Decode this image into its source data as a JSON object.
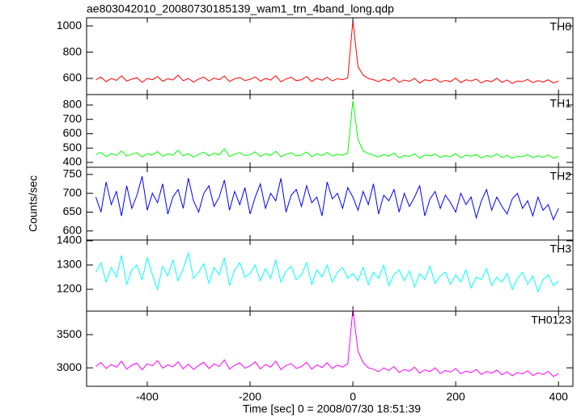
{
  "chart_data": [
    {
      "type": "line",
      "title": "ae803042010_20080730185139_wam1_trn_4band_long.qdp",
      "label": "TH0",
      "color": "#ff0000",
      "xlim": [
        -518,
        428
      ],
      "ylim": [
        477,
        1062
      ],
      "yticks": [
        600,
        800,
        1000
      ],
      "x": [
        -500,
        -490,
        -480,
        -470,
        -460,
        -450,
        -440,
        -430,
        -420,
        -410,
        -400,
        -390,
        -380,
        -370,
        -360,
        -350,
        -340,
        -330,
        -320,
        -310,
        -300,
        -290,
        -280,
        -270,
        -260,
        -250,
        -240,
        -230,
        -220,
        -210,
        -200,
        -190,
        -180,
        -170,
        -160,
        -150,
        -140,
        -130,
        -120,
        -110,
        -100,
        -90,
        -80,
        -70,
        -60,
        -50,
        -40,
        -30,
        -20,
        -10,
        0,
        10,
        20,
        30,
        40,
        50,
        60,
        70,
        80,
        90,
        100,
        110,
        120,
        130,
        140,
        150,
        160,
        170,
        180,
        190,
        200,
        210,
        220,
        230,
        240,
        250,
        260,
        270,
        280,
        290,
        300,
        310,
        320,
        330,
        340,
        350,
        360,
        370,
        380,
        390,
        400
      ],
      "values": [
        590,
        610,
        575,
        600,
        585,
        620,
        580,
        595,
        605,
        570,
        600,
        590,
        615,
        578,
        598,
        588,
        625,
        582,
        600,
        572,
        595,
        610,
        580,
        603,
        590,
        618,
        576,
        597,
        606,
        584,
        592,
        612,
        579,
        600,
        587,
        620,
        574,
        596,
        608,
        583,
        590,
        614,
        577,
        601,
        586,
        609,
        581,
        598,
        590,
        603,
        1040,
        690,
        625,
        600,
        590,
        575,
        595,
        580,
        605,
        570,
        588,
        578,
        600,
        565,
        590,
        582,
        598,
        572,
        585,
        576,
        602,
        568,
        590,
        580,
        595,
        565,
        585,
        575,
        600,
        570,
        588,
        562,
        580,
        576,
        592,
        568,
        583,
        572,
        590,
        565,
        580
      ]
    },
    {
      "type": "line",
      "label": "TH1",
      "color": "#00ff00",
      "xlim": [
        -518,
        428
      ],
      "ylim": [
        366,
        873
      ],
      "yticks": [
        400,
        500,
        600,
        700,
        800
      ],
      "x": [
        -500,
        -490,
        -480,
        -470,
        -460,
        -450,
        -440,
        -430,
        -420,
        -410,
        -400,
        -390,
        -380,
        -370,
        -360,
        -350,
        -340,
        -330,
        -320,
        -310,
        -300,
        -290,
        -280,
        -270,
        -260,
        -250,
        -240,
        -230,
        -220,
        -210,
        -200,
        -190,
        -180,
        -170,
        -160,
        -150,
        -140,
        -130,
        -120,
        -110,
        -100,
        -90,
        -80,
        -70,
        -60,
        -50,
        -40,
        -30,
        -20,
        -10,
        0,
        10,
        20,
        30,
        40,
        50,
        60,
        70,
        80,
        90,
        100,
        110,
        120,
        130,
        140,
        150,
        160,
        170,
        180,
        190,
        200,
        210,
        220,
        230,
        240,
        250,
        260,
        270,
        280,
        290,
        300,
        310,
        320,
        330,
        340,
        350,
        360,
        370,
        380,
        390,
        400
      ],
      "values": [
        455,
        470,
        440,
        462,
        448,
        480,
        445,
        458,
        468,
        438,
        460,
        452,
        475,
        443,
        459,
        450,
        485,
        446,
        462,
        437,
        456,
        472,
        444,
        465,
        452,
        495,
        441,
        458,
        468,
        447,
        453,
        474,
        442,
        461,
        449,
        478,
        440,
        457,
        467,
        446,
        451,
        473,
        439,
        460,
        448,
        469,
        444,
        457,
        450,
        465,
        830,
        560,
        480,
        462,
        450,
        438,
        455,
        444,
        466,
        432,
        448,
        441,
        460,
        430,
        452,
        445,
        458,
        435,
        447,
        440,
        462,
        432,
        451,
        443,
        455,
        430,
        448,
        438,
        460,
        434,
        449,
        428,
        444,
        440,
        455,
        432,
        446,
        436,
        452,
        430,
        442
      ]
    },
    {
      "type": "line",
      "label": "TH2",
      "ylabel": "Counts/sec",
      "color": "#0000ff",
      "xlim": [
        -518,
        428
      ],
      "ylim": [
        576,
        769
      ],
      "yticks": [
        600,
        650,
        700,
        750
      ],
      "x": [
        -500,
        -490,
        -480,
        -470,
        -460,
        -450,
        -440,
        -430,
        -420,
        -410,
        -400,
        -390,
        -380,
        -370,
        -360,
        -350,
        -340,
        -330,
        -320,
        -310,
        -300,
        -290,
        -280,
        -270,
        -260,
        -250,
        -240,
        -230,
        -220,
        -210,
        -200,
        -190,
        -180,
        -170,
        -160,
        -150,
        -140,
        -130,
        -120,
        -110,
        -100,
        -90,
        -80,
        -70,
        -60,
        -50,
        -40,
        -30,
        -20,
        -10,
        0,
        10,
        20,
        30,
        40,
        50,
        60,
        70,
        80,
        90,
        100,
        110,
        120,
        130,
        140,
        150,
        160,
        170,
        180,
        190,
        200,
        210,
        220,
        230,
        240,
        250,
        260,
        270,
        280,
        290,
        300,
        310,
        320,
        330,
        340,
        350,
        360,
        370,
        380,
        390,
        400
      ],
      "values": [
        690,
        650,
        730,
        670,
        705,
        640,
        720,
        660,
        695,
        745,
        655,
        700,
        675,
        725,
        645,
        690,
        710,
        660,
        740,
        680,
        650,
        700,
        720,
        665,
        690,
        735,
        655,
        705,
        670,
        715,
        645,
        690,
        725,
        660,
        700,
        680,
        740,
        650,
        695,
        710,
        665,
        720,
        675,
        690,
        640,
        730,
        685,
        700,
        660,
        715,
        690,
        655,
        705,
        670,
        725,
        645,
        695,
        680,
        710,
        650,
        700,
        665,
        690,
        720,
        640,
        685,
        705,
        660,
        695,
        675,
        650,
        700,
        670,
        690,
        635,
        680,
        710,
        655,
        690,
        665,
        645,
        685,
        700,
        660,
        680,
        640,
        690,
        655,
        670,
        630,
        660
      ]
    },
    {
      "type": "line",
      "label": "TH3",
      "color": "#00ffff",
      "xlim": [
        -518,
        428
      ],
      "ylim": [
        1110,
        1403
      ],
      "yticks": [
        1200,
        1300,
        1400
      ],
      "x": [
        -500,
        -490,
        -480,
        -470,
        -460,
        -450,
        -440,
        -430,
        -420,
        -410,
        -400,
        -390,
        -380,
        -370,
        -360,
        -350,
        -340,
        -330,
        -320,
        -310,
        -300,
        -290,
        -280,
        -270,
        -260,
        -250,
        -240,
        -230,
        -220,
        -210,
        -200,
        -190,
        -180,
        -170,
        -160,
        -150,
        -140,
        -130,
        -120,
        -110,
        -100,
        -90,
        -80,
        -70,
        -60,
        -50,
        -40,
        -30,
        -20,
        -10,
        0,
        10,
        20,
        30,
        40,
        50,
        60,
        70,
        80,
        90,
        100,
        110,
        120,
        130,
        140,
        150,
        160,
        170,
        180,
        190,
        200,
        210,
        220,
        230,
        240,
        250,
        260,
        270,
        280,
        290,
        300,
        310,
        320,
        330,
        340,
        350,
        360,
        370,
        380,
        390,
        400
      ],
      "values": [
        1270,
        1310,
        1230,
        1290,
        1250,
        1340,
        1220,
        1280,
        1300,
        1240,
        1330,
        1260,
        1200,
        1295,
        1255,
        1320,
        1235,
        1285,
        1350,
        1245,
        1270,
        1305,
        1225,
        1290,
        1260,
        1330,
        1215,
        1280,
        1310,
        1250,
        1265,
        1300,
        1235,
        1285,
        1245,
        1320,
        1230,
        1275,
        1295,
        1240,
        1260,
        1310,
        1220,
        1280,
        1250,
        1300,
        1230,
        1270,
        1290,
        1245,
        1265,
        1235,
        1290,
        1220,
        1270,
        1245,
        1300,
        1215,
        1260,
        1280,
        1235,
        1275,
        1210,
        1265,
        1240,
        1295,
        1225,
        1255,
        1270,
        1220,
        1260,
        1230,
        1280,
        1205,
        1250,
        1240,
        1285,
        1215,
        1250,
        1230,
        1265,
        1200,
        1245,
        1270,
        1220,
        1255,
        1190,
        1240,
        1260,
        1215,
        1235
      ]
    },
    {
      "type": "line",
      "label": "TH0123",
      "xlabel": "Time [sec] 0 = 2008/07/30 18:51:39",
      "color": "#ff00ff",
      "xlim": [
        -518,
        428
      ],
      "xticks": [
        -400,
        -200,
        0,
        200,
        400
      ],
      "ylim": [
        2722,
        3854
      ],
      "yticks": [
        3000,
        3500
      ],
      "x": [
        -500,
        -490,
        -480,
        -470,
        -460,
        -450,
        -440,
        -430,
        -420,
        -410,
        -400,
        -390,
        -380,
        -370,
        -360,
        -350,
        -340,
        -330,
        -320,
        -310,
        -300,
        -290,
        -280,
        -270,
        -260,
        -250,
        -240,
        -230,
        -220,
        -210,
        -200,
        -190,
        -180,
        -170,
        -160,
        -150,
        -140,
        -130,
        -120,
        -110,
        -100,
        -90,
        -80,
        -70,
        -60,
        -50,
        -40,
        -30,
        -20,
        -10,
        0,
        10,
        20,
        30,
        40,
        50,
        60,
        70,
        80,
        90,
        100,
        110,
        120,
        130,
        140,
        150,
        160,
        170,
        180,
        190,
        200,
        210,
        220,
        230,
        240,
        250,
        260,
        270,
        280,
        290,
        300,
        310,
        320,
        330,
        340,
        350,
        360,
        370,
        380,
        390,
        400
      ],
      "values": [
        3020,
        3080,
        2990,
        3050,
        3010,
        3100,
        2980,
        3040,
        3070,
        2970,
        3060,
        3030,
        3110,
        2995,
        3045,
        3015,
        3090,
        2985,
        3055,
        2975,
        3035,
        3085,
        2990,
        3060,
        3020,
        3120,
        2980,
        3040,
        3075,
        2995,
        3030,
        3090,
        2985,
        3050,
        3010,
        3100,
        2975,
        3035,
        3065,
        2990,
        3020,
        3085,
        2980,
        3045,
        3005,
        3075,
        2990,
        3040,
        3010,
        3060,
        3880,
        3250,
        3080,
        3000,
        2980,
        2940,
        3000,
        2960,
        3020,
        2930,
        2975,
        2950,
        3010,
        2920,
        2970,
        2945,
        3000,
        2915,
        2960,
        2935,
        2990,
        2910,
        2950,
        2930,
        2975,
        2900,
        2945,
        2920,
        2965,
        2895,
        2940,
        2880,
        2930,
        2910,
        2955,
        2885,
        2925,
        2900,
        2945,
        2870,
        2915
      ]
    }
  ]
}
